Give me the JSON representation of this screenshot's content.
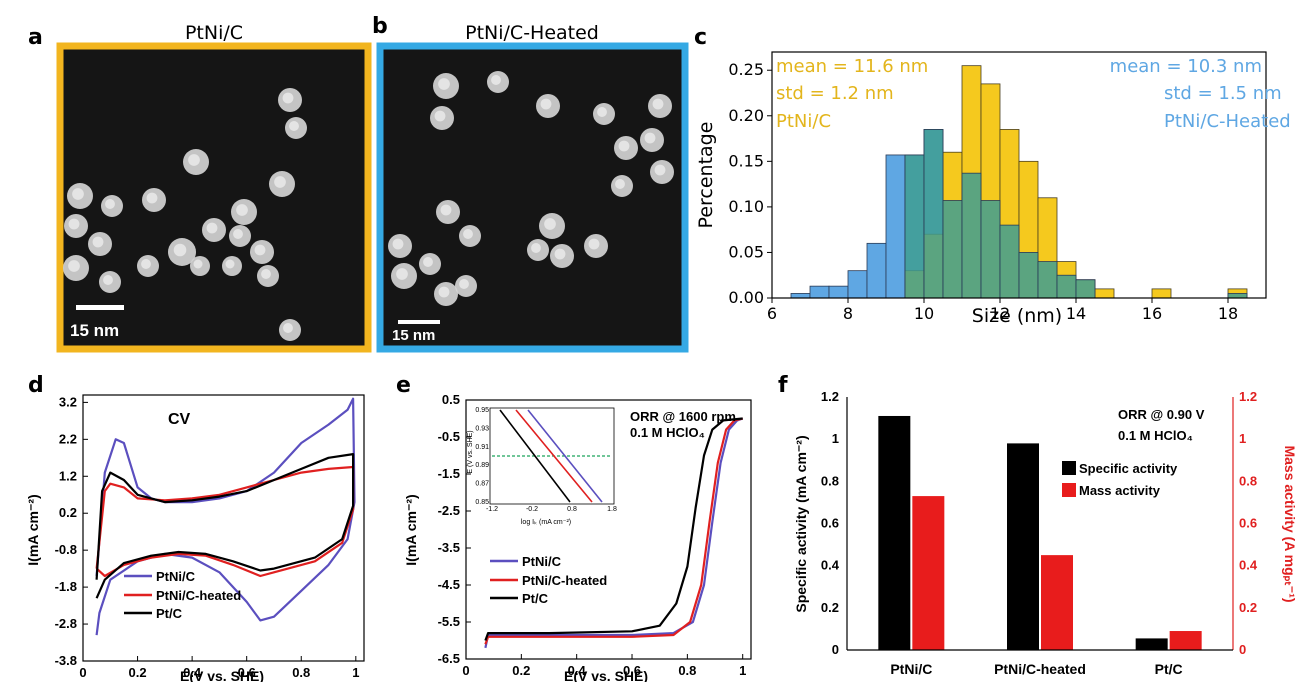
{
  "panels": {
    "a": {
      "letter": "a",
      "title": "PtNi/C",
      "scalebar": "15 nm",
      "frame_color": "#f2b51f"
    },
    "b": {
      "letter": "b",
      "title": "PtNi/C-Heated",
      "scalebar": "15 nm",
      "frame_color": "#35a9e4"
    }
  },
  "chart_data": [
    {
      "id": "c",
      "letter": "c",
      "type": "bar",
      "xlabel": "Size (nm)",
      "ylabel": "Percentage",
      "xlim": [
        6,
        19
      ],
      "ylim": [
        0,
        0.27
      ],
      "xticks": [
        6,
        8,
        10,
        12,
        14,
        16,
        18
      ],
      "yticks": [
        "0.00",
        "0.05",
        "0.10",
        "0.15",
        "0.20",
        "0.25"
      ],
      "bin_width": 0.5,
      "series": [
        {
          "name": "PtNi/C",
          "color": "#f5c91e",
          "bins": [
            [
              9.5,
              0.03
            ],
            [
              10,
              0.07
            ],
            [
              10.5,
              0.16
            ],
            [
              11,
              0.255
            ],
            [
              11.5,
              0.235
            ],
            [
              12,
              0.185
            ],
            [
              12.5,
              0.15
            ],
            [
              13,
              0.11
            ],
            [
              13.5,
              0.04
            ],
            [
              14,
              0.02
            ],
            [
              14.5,
              0.01
            ],
            [
              16,
              0.01
            ],
            [
              18,
              0.01
            ]
          ]
        },
        {
          "name": "PtNi/C-Heated",
          "color": "#5fa7e3",
          "bins": [
            [
              6.5,
              0.005
            ],
            [
              7,
              0.013
            ],
            [
              7.5,
              0.013
            ],
            [
              8,
              0.03
            ],
            [
              8.5,
              0.06
            ],
            [
              9,
              0.157
            ],
            [
              9.5,
              0.157
            ],
            [
              10,
              0.185
            ],
            [
              10.5,
              0.107
            ],
            [
              11,
              0.137
            ],
            [
              11.5,
              0.107
            ],
            [
              12,
              0.08
            ],
            [
              12.5,
              0.05
            ],
            [
              13,
              0.04
            ],
            [
              13.5,
              0.025
            ],
            [
              14,
              0.02
            ],
            [
              18,
              0.005
            ]
          ]
        }
      ],
      "annotations": {
        "left": [
          "mean = 11.6 nm",
          "std = 1.2 nm",
          "PtNi/C"
        ],
        "right": [
          "mean = 10.3 nm",
          "std = 1.5 nm",
          "PtNi/C-Heated"
        ]
      }
    },
    {
      "id": "d",
      "letter": "d",
      "type": "line",
      "title": "CV",
      "xlabel": "E(V vs. SHE)",
      "ylabel": "I(mA cm⁻²)",
      "xlim": [
        0,
        1.03
      ],
      "ylim": [
        -3.8,
        3.4
      ],
      "xticks": [
        "0",
        "0.2",
        "0.4",
        "0.6",
        "0.8",
        "1"
      ],
      "yticks": [
        "3.2",
        "2.2",
        "1.2",
        "0.2",
        "-0.8",
        "-1.8",
        "-2.8",
        "-3.8"
      ],
      "series": [
        {
          "name": "PtNi/C",
          "color": "#5b4fbf",
          "points": [
            [
              0.05,
              -1.5
            ],
            [
              0.08,
              1.3
            ],
            [
              0.12,
              2.2
            ],
            [
              0.15,
              2.1
            ],
            [
              0.2,
              0.9
            ],
            [
              0.25,
              0.6
            ],
            [
              0.3,
              0.5
            ],
            [
              0.4,
              0.5
            ],
            [
              0.5,
              0.6
            ],
            [
              0.6,
              0.8
            ],
            [
              0.7,
              1.3
            ],
            [
              0.8,
              2.1
            ],
            [
              0.9,
              2.6
            ],
            [
              0.97,
              3.0
            ],
            [
              0.99,
              3.3
            ],
            [
              0.995,
              0.5
            ],
            [
              0.97,
              -0.5
            ],
            [
              0.9,
              -1.2
            ],
            [
              0.8,
              -1.9
            ],
            [
              0.7,
              -2.6
            ],
            [
              0.65,
              -2.7
            ],
            [
              0.6,
              -2.2
            ],
            [
              0.5,
              -1.4
            ],
            [
              0.4,
              -1.0
            ],
            [
              0.3,
              -0.9
            ],
            [
              0.2,
              -1.1
            ],
            [
              0.1,
              -1.6
            ],
            [
              0.06,
              -2.5
            ],
            [
              0.05,
              -3.1
            ]
          ]
        },
        {
          "name": "PtNi/C-heated",
          "color": "#e02020",
          "points": [
            [
              0.05,
              -1.3
            ],
            [
              0.08,
              0.8
            ],
            [
              0.1,
              1.0
            ],
            [
              0.15,
              0.9
            ],
            [
              0.2,
              0.6
            ],
            [
              0.3,
              0.55
            ],
            [
              0.4,
              0.6
            ],
            [
              0.5,
              0.7
            ],
            [
              0.6,
              0.9
            ],
            [
              0.7,
              1.1
            ],
            [
              0.8,
              1.3
            ],
            [
              0.9,
              1.4
            ],
            [
              0.99,
              1.45
            ],
            [
              0.99,
              0.3
            ],
            [
              0.95,
              -0.6
            ],
            [
              0.85,
              -1.1
            ],
            [
              0.7,
              -1.4
            ],
            [
              0.65,
              -1.5
            ],
            [
              0.55,
              -1.2
            ],
            [
              0.45,
              -0.95
            ],
            [
              0.35,
              -0.9
            ],
            [
              0.25,
              -1.0
            ],
            [
              0.15,
              -1.2
            ],
            [
              0.08,
              -1.5
            ],
            [
              0.05,
              -1.3
            ]
          ]
        },
        {
          "name": "Pt/C",
          "color": "#000000",
          "points": [
            [
              0.05,
              -1.6
            ],
            [
              0.07,
              0.8
            ],
            [
              0.1,
              1.3
            ],
            [
              0.15,
              1.1
            ],
            [
              0.2,
              0.7
            ],
            [
              0.3,
              0.5
            ],
            [
              0.4,
              0.55
            ],
            [
              0.5,
              0.65
            ],
            [
              0.6,
              0.8
            ],
            [
              0.7,
              1.1
            ],
            [
              0.8,
              1.4
            ],
            [
              0.9,
              1.7
            ],
            [
              0.99,
              1.8
            ],
            [
              0.99,
              0.4
            ],
            [
              0.95,
              -0.5
            ],
            [
              0.85,
              -1.0
            ],
            [
              0.7,
              -1.3
            ],
            [
              0.65,
              -1.35
            ],
            [
              0.55,
              -1.1
            ],
            [
              0.45,
              -0.9
            ],
            [
              0.35,
              -0.85
            ],
            [
              0.25,
              -0.95
            ],
            [
              0.15,
              -1.15
            ],
            [
              0.08,
              -1.6
            ],
            [
              0.05,
              -2.1
            ]
          ]
        }
      ]
    },
    {
      "id": "e",
      "letter": "e",
      "type": "line",
      "xlabel": "E(V vs. SHE)",
      "ylabel": "I(mA cm⁻²)",
      "xlim": [
        0,
        1.03
      ],
      "ylim": [
        -6.5,
        0.5
      ],
      "xticks": [
        "0",
        "0.2",
        "0.4",
        "0.6",
        "0.8",
        "1"
      ],
      "yticks": [
        "0.5",
        "-0.5",
        "-1.5",
        "-2.5",
        "-3.5",
        "-4.5",
        "-5.5",
        "-6.5"
      ],
      "annotation": [
        "ORR @ 1600 rpm",
        "0.1 M HClO₄"
      ],
      "series": [
        {
          "name": "PtNi/C",
          "color": "#5b4fbf",
          "points": [
            [
              0.07,
              -6.2
            ],
            [
              0.08,
              -5.85
            ],
            [
              0.3,
              -5.85
            ],
            [
              0.6,
              -5.85
            ],
            [
              0.75,
              -5.8
            ],
            [
              0.82,
              -5.5
            ],
            [
              0.86,
              -4.5
            ],
            [
              0.89,
              -2.8
            ],
            [
              0.92,
              -1.2
            ],
            [
              0.95,
              -0.3
            ],
            [
              0.98,
              -0.05
            ],
            [
              1.0,
              0.0
            ]
          ]
        },
        {
          "name": "PtNi/C-heated",
          "color": "#e02020",
          "points": [
            [
              0.07,
              -6.1
            ],
            [
              0.08,
              -5.9
            ],
            [
              0.3,
              -5.9
            ],
            [
              0.6,
              -5.9
            ],
            [
              0.75,
              -5.85
            ],
            [
              0.81,
              -5.5
            ],
            [
              0.85,
              -4.5
            ],
            [
              0.88,
              -2.8
            ],
            [
              0.91,
              -1.2
            ],
            [
              0.94,
              -0.3
            ],
            [
              0.97,
              -0.05
            ],
            [
              1.0,
              0.0
            ]
          ]
        },
        {
          "name": "Pt/C",
          "color": "#000000",
          "points": [
            [
              0.07,
              -6.0
            ],
            [
              0.08,
              -5.8
            ],
            [
              0.3,
              -5.8
            ],
            [
              0.6,
              -5.75
            ],
            [
              0.7,
              -5.6
            ],
            [
              0.76,
              -5.0
            ],
            [
              0.8,
              -4.0
            ],
            [
              0.83,
              -2.4
            ],
            [
              0.86,
              -1.0
            ],
            [
              0.89,
              -0.3
            ],
            [
              0.93,
              -0.05
            ],
            [
              1.0,
              0.0
            ]
          ]
        }
      ]
    },
    {
      "id": "e-inset",
      "type": "line",
      "xlabel": "log Iₖ (mA cm⁻²)",
      "ylabel": "E (V vs. SHE)",
      "xlim": [
        -1.2,
        1.8
      ],
      "ylim": [
        0.85,
        0.95
      ],
      "xticks": [
        "-1.2",
        "-0.2",
        "0.8",
        "1.8"
      ],
      "yticks": [
        "0.95",
        "0.93",
        "0.91",
        "0.89",
        "0.87",
        "0.85"
      ],
      "reference_y": 0.9,
      "series": [
        {
          "name": "Pt/C",
          "color": "#000000",
          "points": [
            [
              -1.0,
              0.95
            ],
            [
              0.75,
              0.85
            ]
          ]
        },
        {
          "name": "PtNi/C-heated",
          "color": "#e02020",
          "points": [
            [
              -0.6,
              0.95
            ],
            [
              1.3,
              0.85
            ]
          ]
        },
        {
          "name": "PtNi/C",
          "color": "#5b4fbf",
          "points": [
            [
              -0.3,
              0.95
            ],
            [
              1.55,
              0.85
            ]
          ]
        }
      ]
    },
    {
      "id": "f",
      "letter": "f",
      "type": "bar",
      "categories": [
        "PtNi/C",
        "PtNi/C-heated",
        "Pt/C"
      ],
      "ylabel": "Specific activity (mA cm⁻²)",
      "y2label": "Mass activity (A mgₚₜ⁻¹)",
      "ylim": [
        0,
        1.2
      ],
      "y2lim": [
        0,
        1.2
      ],
      "yticks": [
        "0",
        "0.2",
        "0.4",
        "0.6",
        "0.8",
        "1",
        "1.2"
      ],
      "y2ticks": [
        "0",
        "0.2",
        "0.4",
        "0.6",
        "0.8",
        "1",
        "1.2"
      ],
      "annotation": [
        "ORR @ 0.90 V",
        "0.1 M HClO₄"
      ],
      "series": [
        {
          "name": "Specific activity",
          "color": "#000000",
          "values": [
            1.11,
            0.98,
            0.055
          ]
        },
        {
          "name": "Mass activity",
          "color": "#e81c1c",
          "values": [
            0.73,
            0.45,
            0.09
          ]
        }
      ]
    }
  ]
}
